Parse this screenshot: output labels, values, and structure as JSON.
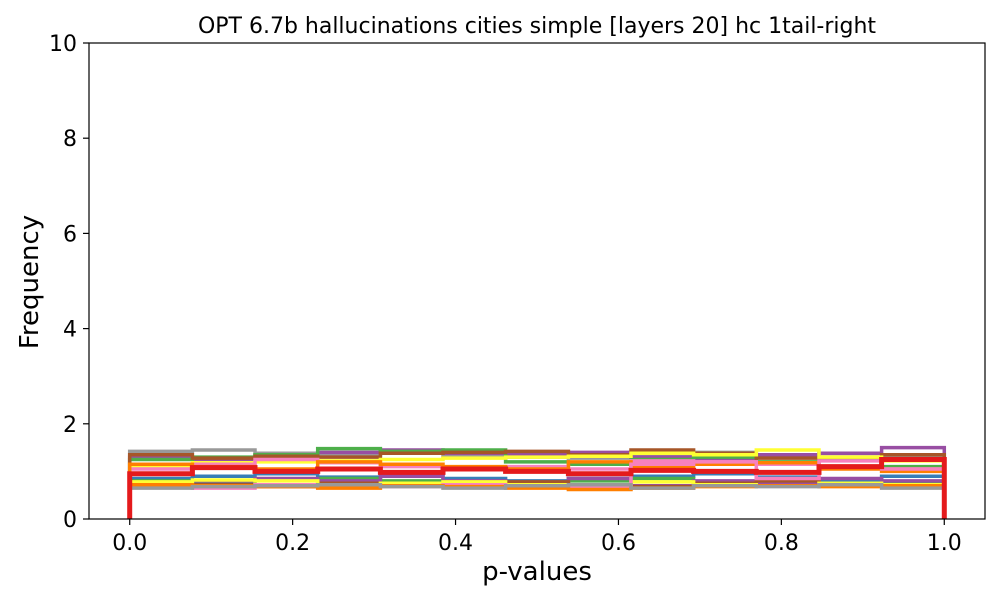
{
  "chart_data": {
    "type": "step-histogram",
    "title": "OPT 6.7b hallucinations cities simple [layers 20] hc 1tail-right",
    "xlabel": "p-values",
    "ylabel": "Frequency",
    "xlim": [
      -0.05,
      1.05
    ],
    "ylim": [
      0,
      10
    ],
    "x_ticks": [
      "0.0",
      "0.2",
      "0.4",
      "0.6",
      "0.8",
      "1.0"
    ],
    "y_ticks": [
      "0",
      "2",
      "4",
      "6",
      "8",
      "10"
    ],
    "grid": false,
    "bin_edges": [
      0.0,
      0.0769,
      0.1538,
      0.2308,
      0.3077,
      0.3846,
      0.4615,
      0.5385,
      0.6154,
      0.6923,
      0.7692,
      0.8462,
      0.9231,
      1.0
    ],
    "series": [
      {
        "color": "#999999",
        "values": [
          1.42,
          1.45,
          1.38,
          1.35,
          1.4,
          1.33,
          1.3,
          1.28,
          1.35,
          1.4,
          1.32,
          1.3,
          1.28
        ]
      },
      {
        "color": "#984ea3",
        "values": [
          1.3,
          1.25,
          1.28,
          1.4,
          1.45,
          1.38,
          1.35,
          1.4,
          1.3,
          1.25,
          1.35,
          1.38,
          1.5
        ]
      },
      {
        "color": "#4daf4a",
        "values": [
          1.25,
          1.3,
          1.35,
          1.48,
          1.42,
          1.45,
          1.2,
          1.15,
          1.25,
          1.3,
          1.2,
          1.25,
          1.1
        ]
      },
      {
        "color": "#a65628",
        "values": [
          1.35,
          1.28,
          1.32,
          1.3,
          1.38,
          1.4,
          1.42,
          1.35,
          1.45,
          1.38,
          1.28,
          1.3,
          1.35
        ]
      },
      {
        "color": "#ffff33",
        "values": [
          1.12,
          1.18,
          1.2,
          1.22,
          1.25,
          1.28,
          1.3,
          1.32,
          1.38,
          1.35,
          1.45,
          1.3,
          1.22
        ]
      },
      {
        "color": "#f781bf",
        "values": [
          1.05,
          1.15,
          1.25,
          1.18,
          1.1,
          1.05,
          1.1,
          1.05,
          1.22,
          1.2,
          1.15,
          1.1,
          1.05
        ]
      },
      {
        "color": "#ff7f00",
        "values": [
          1.15,
          1.1,
          1.05,
          1.2,
          1.15,
          1.1,
          1.05,
          1.2,
          1.1,
          1.15,
          1.18,
          1.05,
          1.0
        ]
      },
      {
        "color": "#377eb8",
        "values": [
          0.85,
          0.9,
          0.95,
          0.88,
          0.92,
          0.85,
          0.8,
          0.85,
          0.9,
          0.95,
          0.88,
          0.82,
          0.9
        ]
      },
      {
        "color": "#4daf4a",
        "values": [
          0.8,
          0.75,
          0.7,
          0.85,
          0.8,
          0.75,
          0.7,
          0.8,
          0.85,
          0.75,
          0.8,
          0.7,
          0.75
        ]
      },
      {
        "color": "#984ea3",
        "values": [
          0.75,
          0.8,
          0.85,
          0.8,
          0.9,
          0.8,
          0.75,
          0.85,
          0.7,
          0.8,
          0.75,
          0.85,
          0.8
        ]
      },
      {
        "color": "#a65628",
        "values": [
          0.7,
          0.72,
          0.68,
          0.75,
          0.72,
          0.7,
          0.78,
          0.72,
          0.68,
          0.75,
          0.8,
          0.72,
          0.7
        ]
      },
      {
        "color": "#ffff33",
        "values": [
          0.78,
          0.82,
          0.8,
          0.72,
          0.75,
          0.78,
          0.72,
          0.7,
          0.78,
          0.72,
          0.7,
          0.75,
          0.72
        ]
      },
      {
        "color": "#f781bf",
        "values": [
          0.68,
          0.65,
          0.72,
          0.7,
          0.68,
          0.72,
          0.7,
          0.65,
          1.15,
          1.2,
          0.85,
          1.22,
          1.05
        ]
      },
      {
        "color": "#ff7f00",
        "values": [
          0.72,
          0.7,
          0.68,
          0.65,
          0.7,
          0.68,
          0.65,
          0.62,
          0.65,
          0.68,
          0.7,
          0.68,
          0.7
        ]
      },
      {
        "color": "#999999",
        "values": [
          0.65,
          0.68,
          0.7,
          0.72,
          0.68,
          0.65,
          0.7,
          0.72,
          0.65,
          0.7,
          0.68,
          0.72,
          0.65
        ]
      },
      {
        "color": "#e41a1c",
        "values": [
          0.95,
          1.08,
          1.0,
          1.05,
          0.98,
          1.05,
          1.0,
          0.95,
          1.02,
          1.0,
          0.98,
          1.1,
          1.25
        ]
      }
    ]
  }
}
